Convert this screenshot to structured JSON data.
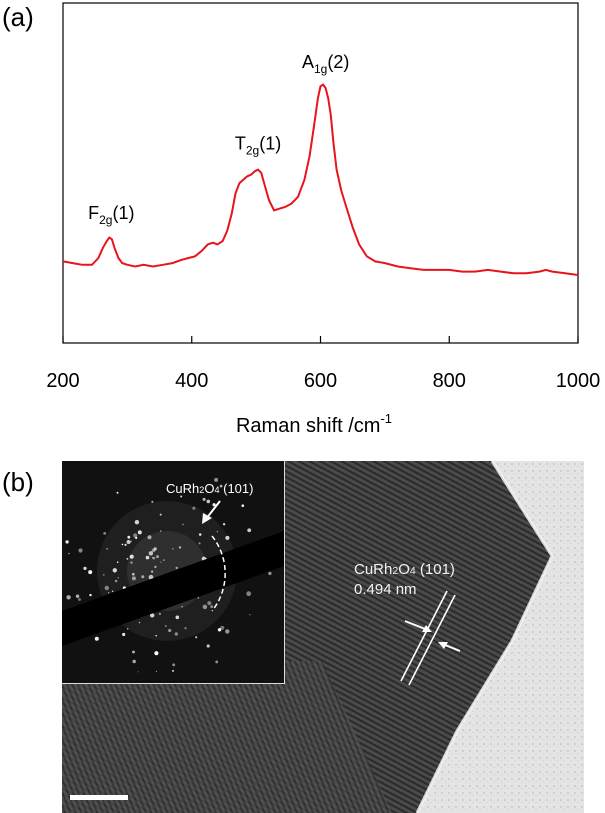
{
  "panel_a_label": "(a)",
  "panel_b_label": "(b)",
  "chart_data": {
    "type": "line",
    "title": "",
    "xlabel": "Raman shift /cm",
    "xlabel_superscript": "-1",
    "ylabel": "",
    "xlim": [
      200,
      1000
    ],
    "ylim": [
      0,
      100
    ],
    "xticks": [
      200,
      400,
      600,
      800,
      1000
    ],
    "tick_labels": [
      "200",
      "400",
      "600",
      "800",
      "1000"
    ],
    "grid": false,
    "y_axis_ticks": false,
    "line_color": "#e8141b",
    "series": [
      {
        "x": [
          200,
          215,
          230,
          245,
          255,
          262,
          268,
          272,
          276,
          280,
          286,
          292,
          300,
          312,
          325,
          340,
          355,
          370,
          385,
          395,
          405,
          415,
          425,
          433,
          440,
          448,
          455,
          462,
          468,
          474,
          480,
          486,
          492,
          498,
          503,
          508,
          514,
          520,
          528,
          536,
          545,
          555,
          565,
          575,
          583,
          590,
          596,
          600,
          604,
          608,
          612,
          616,
          620,
          625,
          632,
          640,
          650,
          660,
          672,
          685,
          700,
          720,
          740,
          760,
          780,
          800,
          820,
          840,
          860,
          880,
          900,
          920,
          940,
          950,
          960,
          980,
          1000
        ],
        "values": [
          24,
          23.5,
          23,
          23,
          25,
          28,
          30,
          31,
          30.5,
          28,
          25,
          23.5,
          23,
          22.5,
          23,
          22.5,
          23,
          23.5,
          24.5,
          25,
          25.5,
          27,
          29,
          29.5,
          29,
          30,
          33,
          38,
          44,
          47,
          48,
          49,
          49.5,
          50.5,
          51,
          50,
          46,
          42,
          39,
          39.5,
          40,
          41,
          43,
          48,
          55,
          64,
          72,
          75.5,
          76,
          75,
          72,
          67,
          59,
          51,
          45,
          40,
          34,
          29,
          25.5,
          24,
          23.5,
          22.5,
          22,
          21.5,
          21.5,
          21.5,
          21,
          21,
          21.5,
          21,
          20.5,
          20.5,
          21,
          21.5,
          21,
          20.5,
          20
        ]
      }
    ],
    "annotations": [
      {
        "base": "F",
        "sub": "2g",
        "suffix": "(1)",
        "x": 275
      },
      {
        "base": "T",
        "sub": "2g",
        "suffix": "(1)",
        "x": 503
      },
      {
        "base": "A",
        "sub": "1g",
        "suffix": "(2)",
        "x": 608
      }
    ]
  },
  "micrograph": {
    "inset_label_base": "CuRh",
    "inset_label_sub1": "2",
    "inset_label_mid": "O",
    "inset_label_sub2": "4",
    "inset_label_suffix": " (101)",
    "lattice_label_base": "CuRh",
    "lattice_label_sub1": "2",
    "lattice_label_mid": "O",
    "lattice_label_sub2": "4",
    "lattice_label_suffix": " (101)",
    "spacing_label": "0.494 nm"
  }
}
